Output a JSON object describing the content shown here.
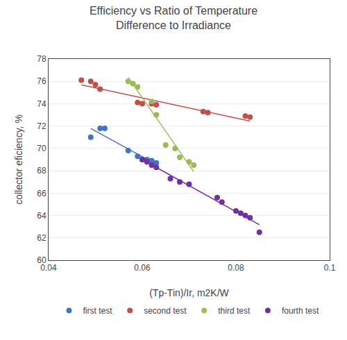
{
  "chart_data": {
    "type": "scatter",
    "title": "Efficiency vs Ratio of Temperature\nDifference to Irradiance",
    "xlabel": "(Tp-Tin)/Ir, m2K/W",
    "ylabel": "collector eficiency, %",
    "xlim": [
      0.04,
      0.1
    ],
    "ylim": [
      60,
      78
    ],
    "xticks": [
      0.04,
      0.06,
      0.08,
      0.1
    ],
    "yticks": [
      60,
      62,
      64,
      66,
      68,
      70,
      72,
      74,
      76,
      78
    ],
    "grid": "y",
    "legend": "bottom",
    "marker": "circle",
    "series": [
      {
        "name": "first test",
        "color": "#4472c4",
        "x": [
          0.049,
          0.051,
          0.052,
          0.057,
          0.059,
          0.06,
          0.061,
          0.062,
          0.063
        ],
        "values": [
          71.0,
          71.8,
          71.8,
          69.8,
          69.3,
          69.0,
          69.0,
          68.9,
          68.7
        ],
        "trendline": {
          "x": [
            0.049,
            0.063
          ],
          "values": [
            71.79,
            68.57
          ]
        }
      },
      {
        "name": "second test",
        "color": "#c0504d",
        "x": [
          0.047,
          0.049,
          0.05,
          0.051,
          0.059,
          0.06,
          0.062,
          0.063,
          0.073,
          0.074,
          0.082,
          0.083
        ],
        "values": [
          76.1,
          76.0,
          75.7,
          75.3,
          74.1,
          74.0,
          74.0,
          73.9,
          73.3,
          73.2,
          72.9,
          72.8
        ],
        "trendline": {
          "x": [
            0.047,
            0.083
          ],
          "values": [
            75.69,
            72.45
          ]
        }
      },
      {
        "name": "third test",
        "color": "#9bbb59",
        "x": [
          0.057,
          0.058,
          0.059,
          0.062,
          0.063,
          0.065,
          0.067,
          0.068,
          0.07,
          0.071
        ],
        "values": [
          76.0,
          75.8,
          75.5,
          74.2,
          73.0,
          70.3,
          70.0,
          69.2,
          68.8,
          68.5
        ],
        "trendline": {
          "x": [
            0.057,
            0.071
          ],
          "values": [
            76.35,
            67.91
          ]
        }
      },
      {
        "name": "fourth test",
        "color": "#7030a0",
        "x": [
          0.06,
          0.061,
          0.062,
          0.063,
          0.066,
          0.068,
          0.07,
          0.076,
          0.077,
          0.08,
          0.081,
          0.082,
          0.083,
          0.085
        ],
        "values": [
          69.0,
          68.8,
          68.5,
          68.3,
          67.3,
          67.0,
          66.8,
          65.6,
          65.2,
          64.4,
          64.2,
          64.0,
          63.8,
          62.5
        ],
        "trendline": {
          "x": [
            0.06,
            0.085
          ],
          "values": [
            69.0,
            63.17
          ]
        }
      }
    ]
  }
}
